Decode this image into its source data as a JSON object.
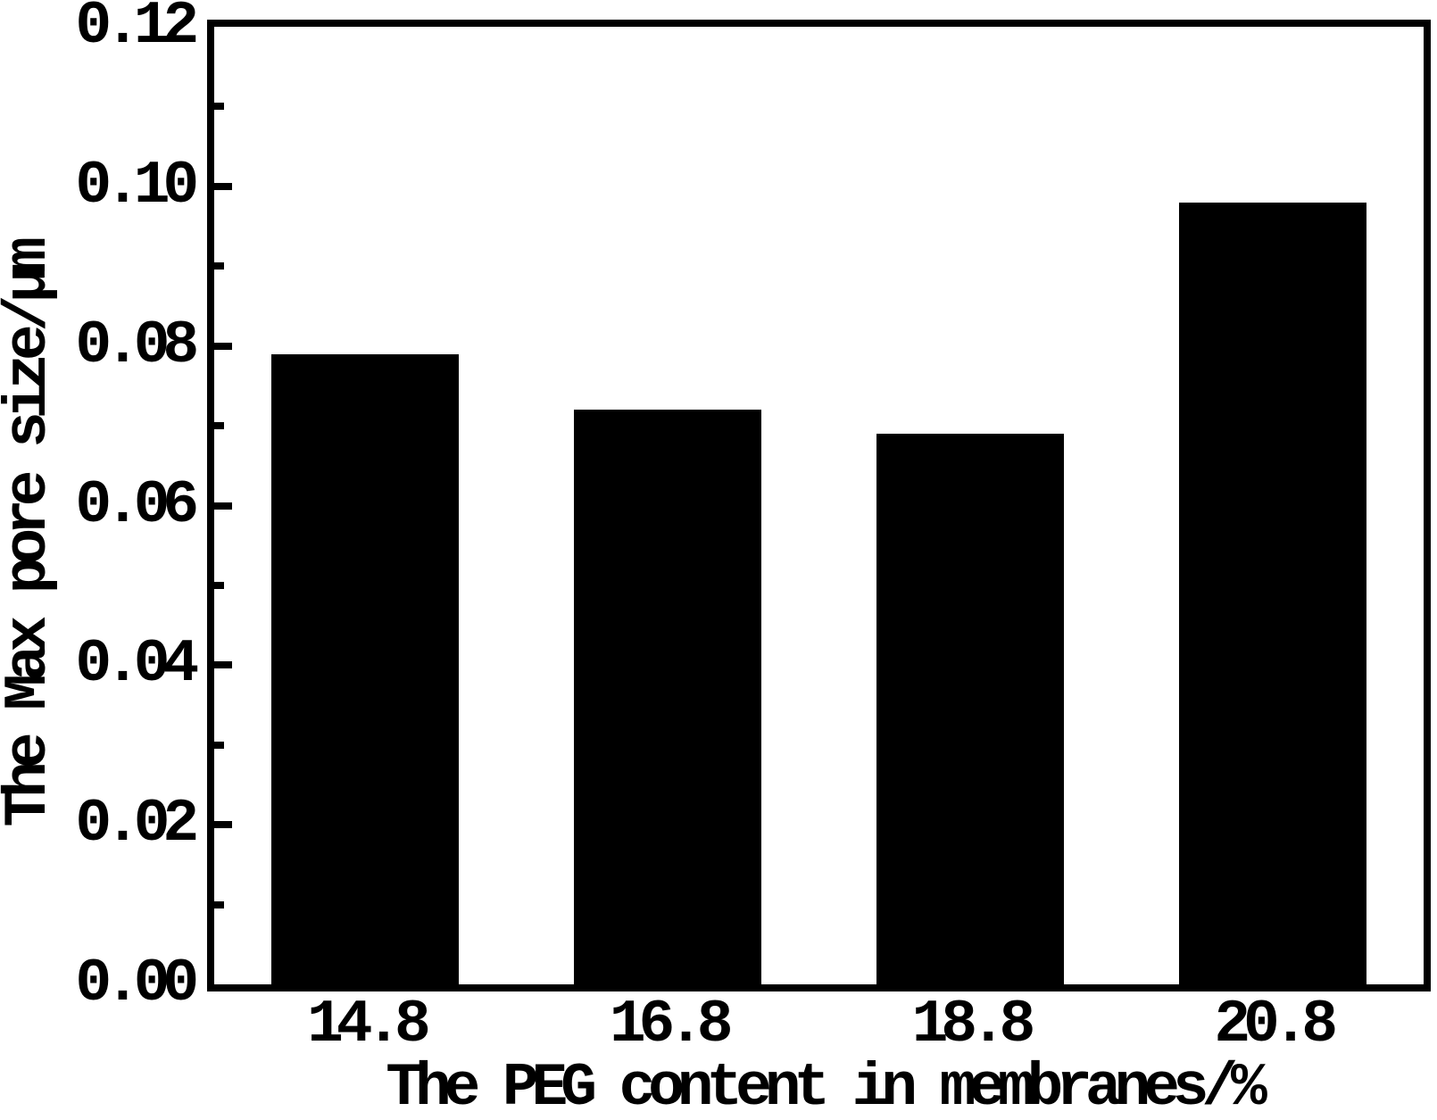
{
  "chart_data": {
    "type": "bar",
    "categories": [
      "14.8",
      "16.8",
      "18.8",
      "20.8"
    ],
    "values": [
      0.079,
      0.072,
      0.069,
      0.098
    ],
    "title": "",
    "xlabel": "The PEG content in membranes/%",
    "ylabel": "The Max pore size/μm",
    "ylim": [
      0,
      0.12
    ],
    "ytick_values": [
      0.0,
      0.02,
      0.04,
      0.06,
      0.08,
      0.1,
      0.12
    ],
    "ytick_labels": [
      "0.00",
      "0.02",
      "0.04",
      "0.06",
      "0.08",
      "0.10",
      "0.12"
    ],
    "minor_ytick_values": [
      0.01,
      0.03,
      0.05,
      0.07,
      0.09,
      0.11
    ],
    "bar_color": "#000000",
    "axis_color": "#000000",
    "background_color": "#ffffff",
    "grid": false,
    "legend": null,
    "tick_direction": "in"
  }
}
